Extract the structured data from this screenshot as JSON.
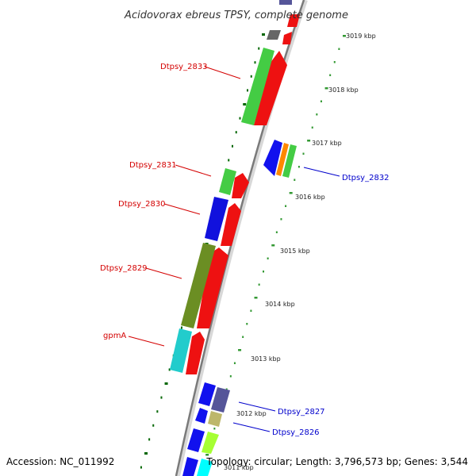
{
  "title": "Acidovorax ebreus TPSY, complete genome",
  "footer": {
    "accession": "Accession: NC_011992",
    "summary": "Topology: circular; Length: 3,796,573 bp; Genes: 3,544"
  },
  "colors": {
    "forward_label": "#d40000",
    "reverse_label": "#0000cc",
    "backbone": "#8c8c8c",
    "tick_outer": "#339933",
    "tick_inner": "#006600"
  },
  "ticks": [
    {
      "label": "3019 kbp",
      "kbp": 3019
    },
    {
      "label": "3018 kbp",
      "kbp": 3018
    },
    {
      "label": "3017 kbp",
      "kbp": 3017
    },
    {
      "label": "3016 kbp",
      "kbp": 3016
    },
    {
      "label": "3015 kbp",
      "kbp": 3015
    },
    {
      "label": "3014 kbp",
      "kbp": 3014
    },
    {
      "label": "3013 kbp",
      "kbp": 3013
    },
    {
      "label": "3012 kbp",
      "kbp": 3012
    },
    {
      "label": "3011 kbp",
      "kbp": 3011
    }
  ],
  "gene_labels": [
    {
      "name": "Dtpsy_2833",
      "strand": "forward"
    },
    {
      "name": "Dtpsy_2832",
      "strand": "reverse"
    },
    {
      "name": "Dtpsy_2831",
      "strand": "forward"
    },
    {
      "name": "Dtpsy_2830",
      "strand": "forward"
    },
    {
      "name": "Dtpsy_2829",
      "strand": "forward"
    },
    {
      "name": "gpmA",
      "strand": "forward"
    },
    {
      "name": "Dtpsy_2827",
      "strand": "reverse"
    },
    {
      "name": "Dtpsy_2826",
      "strand": "reverse"
    }
  ]
}
